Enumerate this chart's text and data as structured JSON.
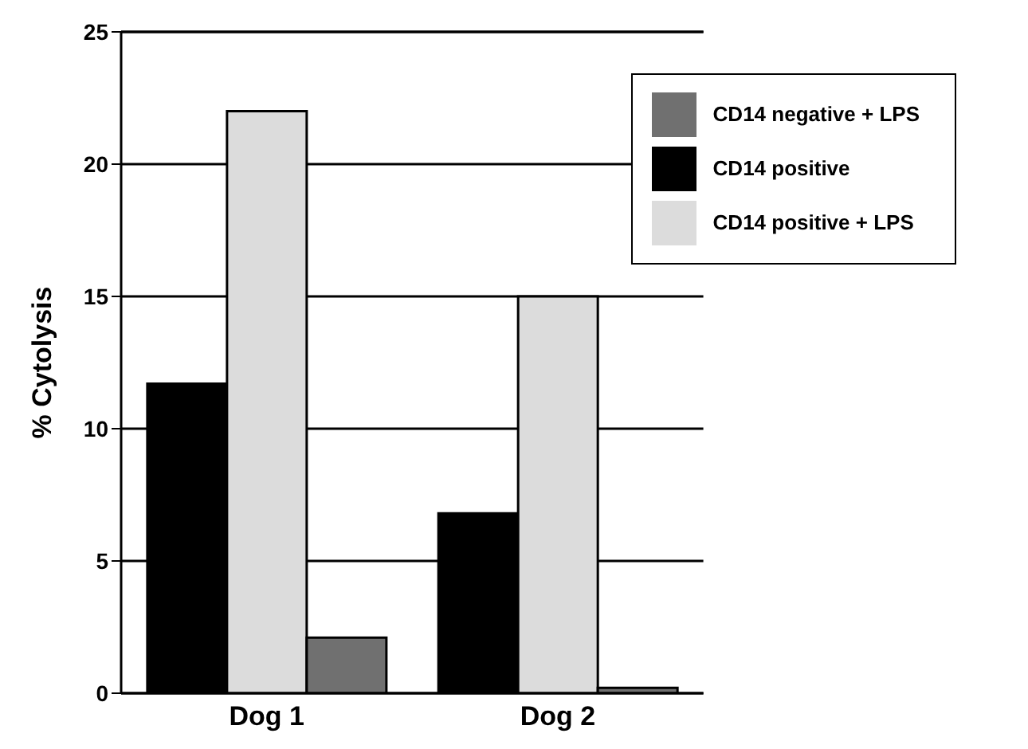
{
  "chart_data": {
    "type": "bar",
    "ylabel": "% Cytolysis",
    "categories": [
      "Dog 1",
      "Dog 2"
    ],
    "series": [
      {
        "name": "CD14 positive",
        "color": "#000000",
        "values": [
          11.7,
          6.8
        ]
      },
      {
        "name": "CD14 positive + LPS",
        "color": "#dcdcdc",
        "values": [
          22,
          15
        ]
      },
      {
        "name": "CD14 negative + LPS",
        "color": "#707070",
        "values": [
          2.1,
          0.2
        ]
      }
    ],
    "ylim": [
      0,
      25
    ],
    "yticks": [
      0,
      5,
      10,
      15,
      20,
      25
    ],
    "grid": "y",
    "legend": "top right"
  }
}
